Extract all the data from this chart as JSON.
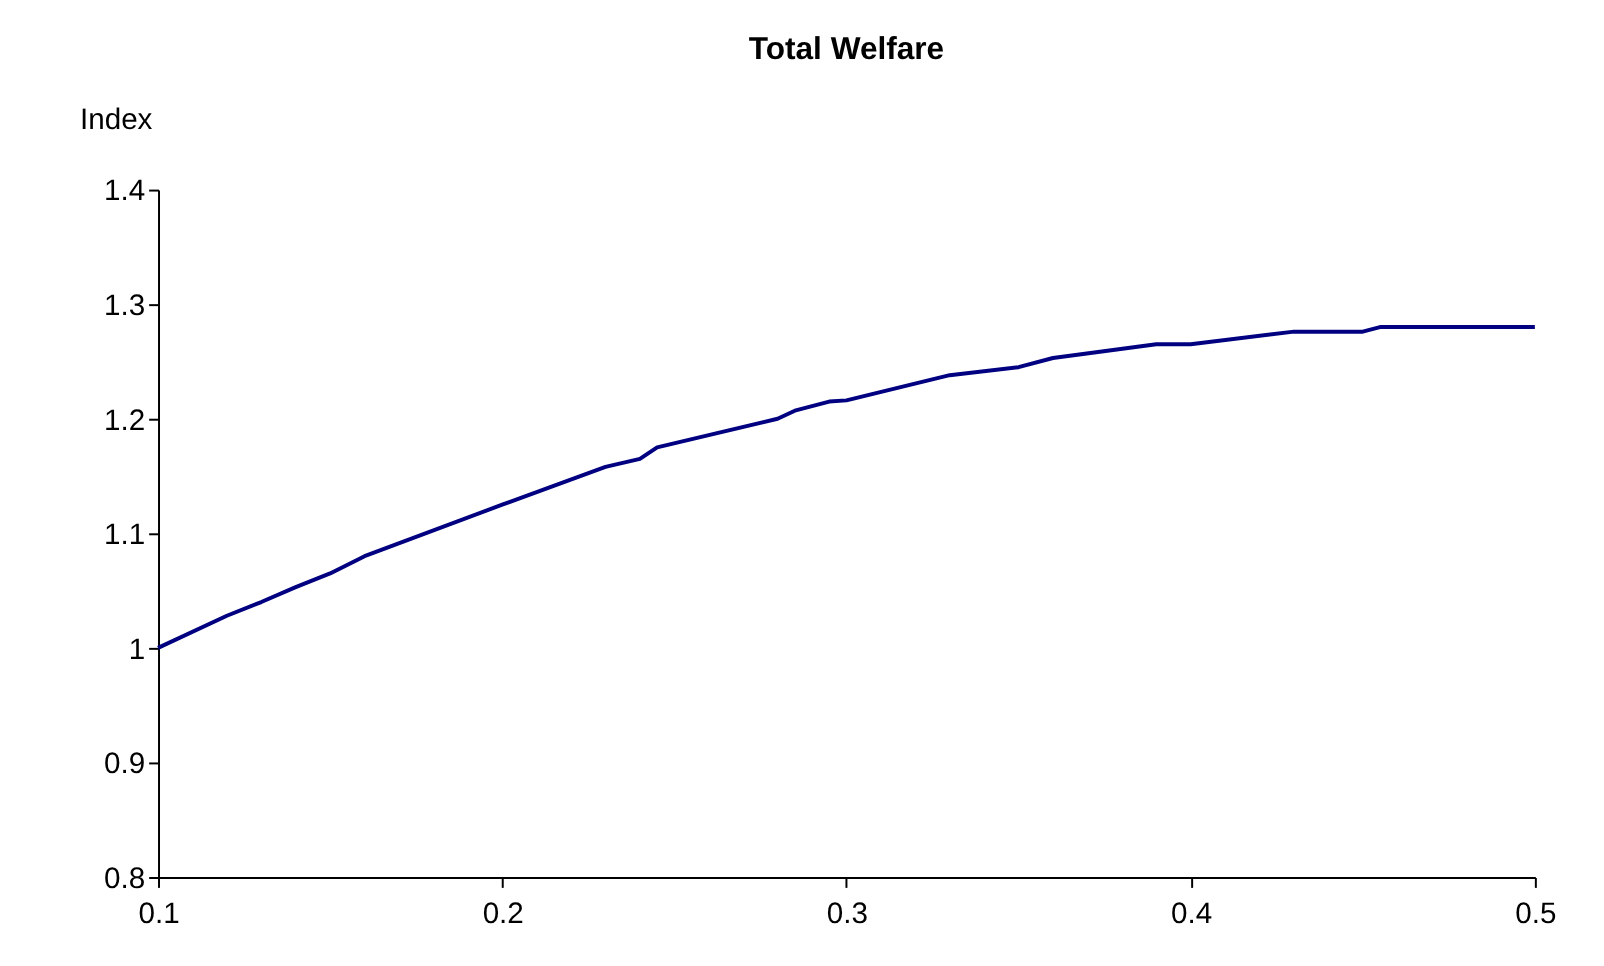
{
  "chart_data": {
    "type": "line",
    "title": "Total Welfare",
    "ylabel": "Index",
    "x": [
      0.1,
      0.12,
      0.13,
      0.14,
      0.15,
      0.16,
      0.2,
      0.23,
      0.24,
      0.245,
      0.28,
      0.285,
      0.295,
      0.3,
      0.33,
      0.35,
      0.36,
      0.39,
      0.4,
      0.43,
      0.45,
      0.455,
      0.5
    ],
    "series": [
      {
        "color": "#000080",
        "values": [
          1.0,
          1.028,
          1.04,
          1.053,
          1.065,
          1.08,
          1.125,
          1.158,
          1.165,
          1.175,
          1.2,
          1.207,
          1.215,
          1.216,
          1.238,
          1.245,
          1.253,
          1.265,
          1.265,
          1.276,
          1.276,
          1.28,
          1.28
        ]
      }
    ],
    "xlim": [
      0.1,
      0.5
    ],
    "xticks": [
      0.1,
      0.2,
      0.3,
      0.4,
      0.5
    ],
    "ylim": [
      0.8,
      1.4
    ],
    "yticks": [
      0.8,
      0.9,
      1,
      1.1,
      1.2,
      1.3,
      1.4
    ],
    "grid": false,
    "legend": false,
    "marker": "none",
    "line_style": "solid"
  }
}
